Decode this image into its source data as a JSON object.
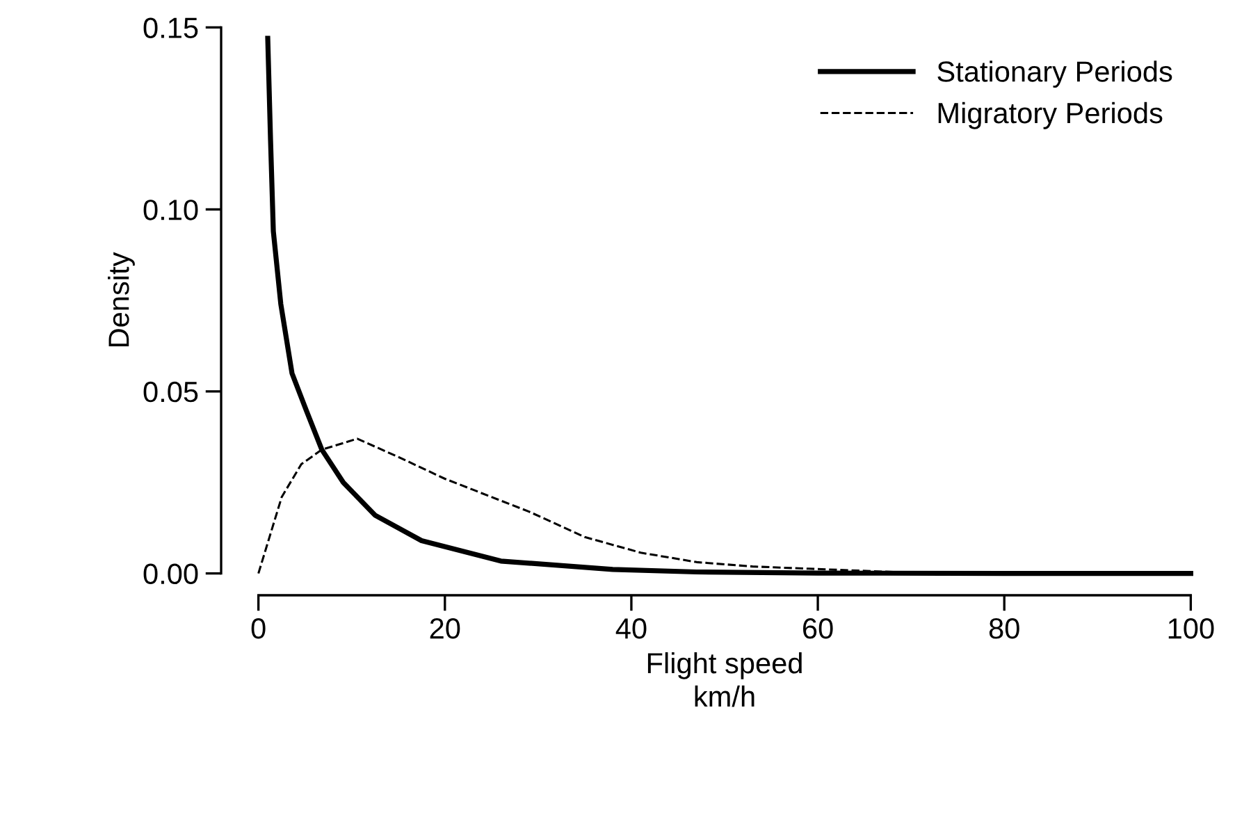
{
  "chart_data": {
    "type": "line",
    "xlabel": "Flight speed\nkm/h",
    "ylabel": "Density",
    "xlim": [
      0,
      100
    ],
    "ylim": [
      0,
      0.15
    ],
    "xticks": [
      0,
      20,
      40,
      60,
      80,
      100
    ],
    "yticks": [
      {
        "value": 0,
        "label": "0.00"
      },
      {
        "value": 0.05,
        "label": "0.05"
      },
      {
        "value": 0.1,
        "label": "0.10"
      },
      {
        "value": 0.15,
        "label": "0.15"
      }
    ],
    "grid": false,
    "legend": "top right",
    "marker": "none",
    "series": [
      {
        "name": "Stationary Periods",
        "color": "#000000",
        "line_style": "solid",
        "x": [
          1.0,
          1.3,
          1.6,
          2.4,
          3.6,
          5.1,
          6.8,
          9.1,
          12.5,
          17.5,
          26,
          38,
          47,
          60,
          80,
          100
        ],
        "values": [
          0.147,
          0.119,
          0.094,
          0.074,
          0.055,
          0.045,
          0.034,
          0.025,
          0.016,
          0.009,
          0.0034,
          0.0011,
          0.0004,
          0.0001,
          0,
          0
        ]
      },
      {
        "name": "Migratory Periods",
        "color": "#000000",
        "line_style": "dashed",
        "x": [
          0,
          2.5,
          4.6,
          6.8,
          10.6,
          15,
          20,
          23,
          29,
          35,
          41,
          47,
          53,
          59,
          69,
          80,
          100
        ],
        "values": [
          0,
          0.021,
          0.03,
          0.034,
          0.037,
          0.032,
          0.026,
          0.023,
          0.017,
          0.01,
          0.0057,
          0.0031,
          0.0019,
          0.0013,
          0.0003,
          0,
          0
        ]
      }
    ]
  }
}
